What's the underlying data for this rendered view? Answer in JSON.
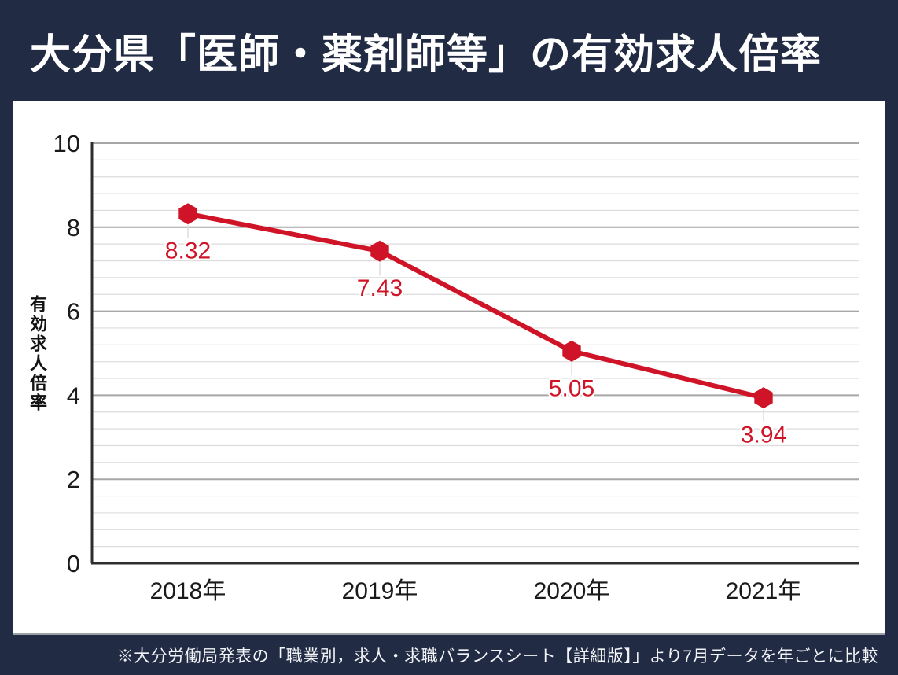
{
  "header": {
    "title": "大分県「医師・薬剤師等」の有効求人倍率"
  },
  "footer": {
    "note": "※大分労働局発表の「職業別，求人・求職バランスシート【詳細版】」より7月データを年ごとに比較"
  },
  "colors": {
    "background_navy": "#212b43",
    "panel_white": "#ffffff",
    "series_red": "#d01427",
    "grid_minor": "#dcdcdc",
    "grid_major": "#a6a6a6",
    "axis_line": "#2e2e2e",
    "tick_text": "#1a1a1a"
  },
  "chart_data": {
    "type": "line",
    "title": "大分県「医師・薬剤師等」の有効求人倍率",
    "categories": [
      "2018年",
      "2019年",
      "2020年",
      "2021年"
    ],
    "values": [
      8.32,
      7.43,
      5.05,
      3.94
    ],
    "data_labels": [
      "8.32",
      "7.43",
      "5.05",
      "3.94"
    ],
    "xlabel": "",
    "ylabel": "有効求人倍率",
    "ylim": [
      0,
      10
    ],
    "yticks": [
      0,
      2,
      4,
      6,
      8,
      10
    ],
    "ytick_step": 2,
    "minor_grid_step": 0.4,
    "grid": true,
    "legend": false,
    "marker": "hexagon",
    "series_color": "#d01427",
    "source_note": "※大分労働局発表の「職業別，求人・求職バランスシート【詳細版】」より7月データを年ごとに比較"
  }
}
